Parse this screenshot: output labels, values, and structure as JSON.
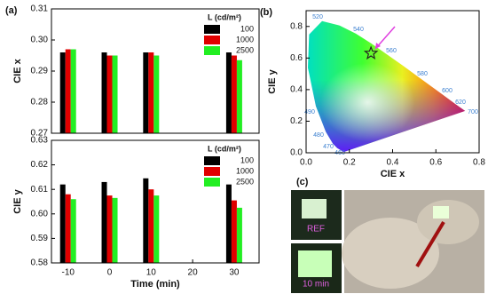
{
  "chart_data": [
    {
      "type": "bar",
      "panel_label": "(a)",
      "ylabel": "CIE x",
      "x": [
        -10,
        0,
        10,
        30
      ],
      "xlim": [
        -14,
        36
      ],
      "ylim": [
        0.27,
        0.31
      ],
      "yticks": [
        0.27,
        0.28,
        0.29,
        {
          "value": 0.3,
          "label": "0.30"
        },
        0.31
      ],
      "legend_title": "L (cd/m²)",
      "legend": "upper right",
      "series": [
        {
          "name": "100",
          "color": "#000000",
          "values": [
            0.296,
            0.296,
            0.296,
            0.296
          ]
        },
        {
          "name": "1000",
          "color": "#e00000",
          "values": [
            0.297,
            0.295,
            0.296,
            0.295
          ]
        },
        {
          "name": "2500",
          "color": "#22ee22",
          "values": [
            0.297,
            0.295,
            0.295,
            0.2935
          ]
        }
      ]
    },
    {
      "type": "bar",
      "xlabel": "Time (min)",
      "ylabel": "CIE y",
      "x": [
        -10,
        0,
        10,
        30
      ],
      "xlim": [
        -14,
        36
      ],
      "xticks": [
        -10,
        0,
        10,
        20,
        30
      ],
      "ylim": [
        0.58,
        0.63
      ],
      "yticks": [
        0.58,
        0.59,
        {
          "value": 0.6,
          "label": "0.60"
        },
        0.61,
        0.62,
        0.63
      ],
      "legend_title": "L (cd/m²)",
      "legend": "upper right",
      "series": [
        {
          "name": "100",
          "color": "#000000",
          "values": [
            0.612,
            0.613,
            0.6145,
            0.612
          ]
        },
        {
          "name": "1000",
          "color": "#e00000",
          "values": [
            0.608,
            0.6075,
            0.61,
            0.6055
          ]
        },
        {
          "name": "2500",
          "color": "#22ee22",
          "values": [
            0.606,
            0.6065,
            0.6075,
            0.6025
          ]
        }
      ]
    },
    {
      "type": "scatter",
      "panel_label": "(b)",
      "xlabel": "CIE x",
      "ylabel": "CIE y",
      "xlim": [
        0,
        0.8
      ],
      "ylim": [
        0,
        0.9
      ],
      "xticks": [
        {
          "value": 0,
          "label": "0.0"
        },
        0.2,
        0.4,
        0.6,
        0.8
      ],
      "yticks": [
        {
          "value": 0,
          "label": "0.0"
        },
        0.2,
        0.4,
        0.6,
        0.8
      ],
      "wavelength_labels": [
        "520",
        "540",
        "560",
        "580",
        "600",
        "620",
        "700",
        "490",
        "480",
        "470",
        "460"
      ],
      "series": [
        {
          "color": "#222222",
          "x": [
            0.3
          ],
          "values": [
            0.63
          ]
        }
      ]
    }
  ],
  "photos": {
    "panel_label": "(c)",
    "captions": [
      "REF",
      "10 min"
    ]
  }
}
